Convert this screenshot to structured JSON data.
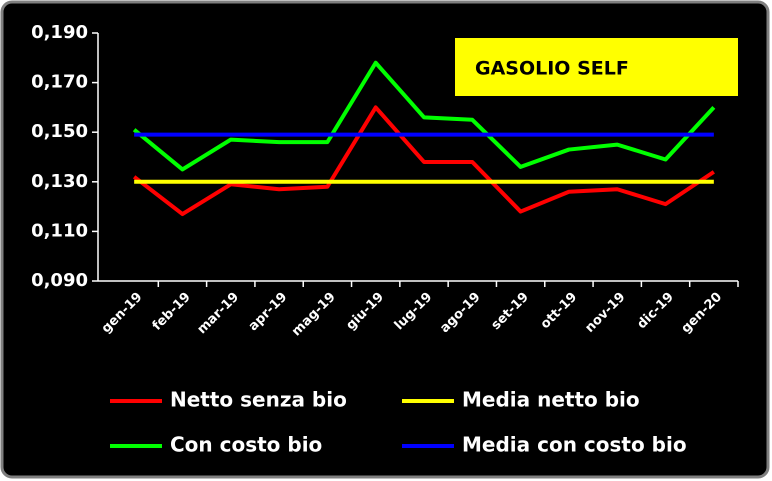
{
  "chart_data": {
    "type": "line",
    "title": "GASOLIO SELF",
    "categories": [
      "gen-19",
      "feb-19",
      "mar-19",
      "apr-19",
      "mag-19",
      "giu-19",
      "lug-19",
      "ago-19",
      "set-19",
      "ott-19",
      "nov-19",
      "dic-19",
      "gen-20"
    ],
    "series": [
      {
        "name": "Netto senza bio",
        "color": "#ff0000",
        "values": [
          0.132,
          0.117,
          0.129,
          0.127,
          0.128,
          0.16,
          0.138,
          0.138,
          0.118,
          0.126,
          0.127,
          0.121,
          0.134
        ]
      },
      {
        "name": "Media netto bio",
        "color": "#ffff00",
        "values": [
          0.13,
          0.13,
          0.13,
          0.13,
          0.13,
          0.13,
          0.13,
          0.13,
          0.13,
          0.13,
          0.13,
          0.13,
          0.13
        ]
      },
      {
        "name": "Con costo bio",
        "color": "#00ff00",
        "values": [
          0.151,
          0.135,
          0.147,
          0.146,
          0.146,
          0.178,
          0.156,
          0.155,
          0.136,
          0.143,
          0.145,
          0.139,
          0.16
        ]
      },
      {
        "name": "Media con costo bio",
        "color": "#0000ff",
        "values": [
          0.149,
          0.149,
          0.149,
          0.149,
          0.149,
          0.149,
          0.149,
          0.149,
          0.149,
          0.149,
          0.149,
          0.149,
          0.149
        ]
      }
    ],
    "ylim": [
      0.09,
      0.19
    ],
    "yticks": [
      {
        "value": 0.09,
        "label": "0,090"
      },
      {
        "value": 0.11,
        "label": "0,110"
      },
      {
        "value": 0.13,
        "label": "0,130"
      },
      {
        "value": 0.15,
        "label": "0,150"
      },
      {
        "value": 0.17,
        "label": "0,170"
      },
      {
        "value": 0.19,
        "label": "0,190"
      }
    ],
    "grid": false
  }
}
